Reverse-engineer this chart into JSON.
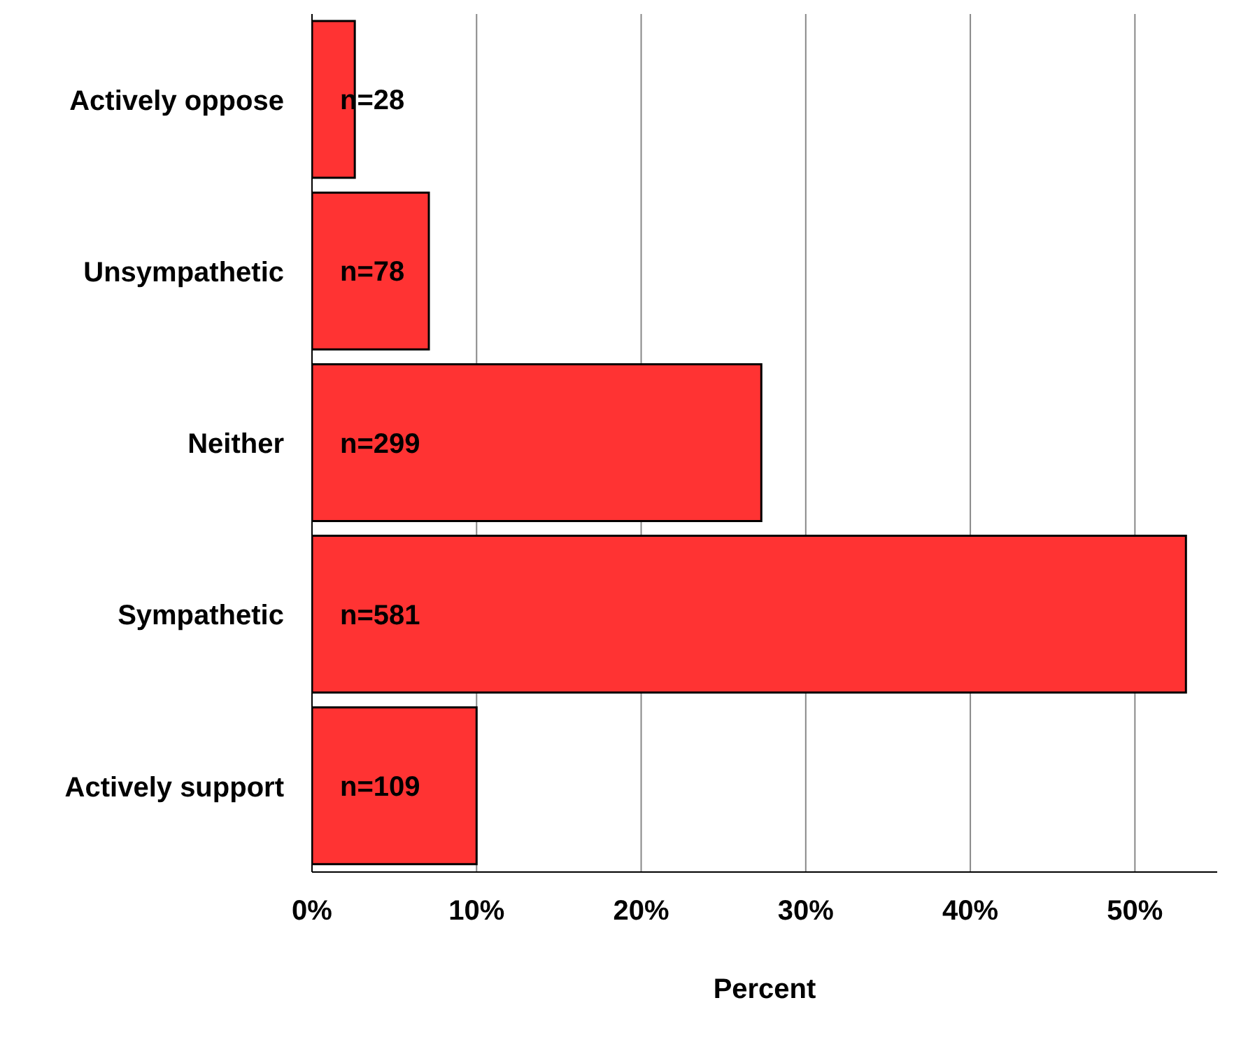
{
  "chart_data": {
    "type": "bar",
    "orientation": "horizontal",
    "xlabel": "Percent",
    "categories": [
      "Actively oppose",
      "Unsympathetic",
      "Neither",
      "Sympathetic",
      "Actively support"
    ],
    "values": [
      2.6,
      7.1,
      27.3,
      53.1,
      10.0
    ],
    "annotations": [
      "n=28",
      "n=78",
      "n=299",
      "n=581",
      "n=109"
    ],
    "color": "#ff3333",
    "xlim": [
      0,
      55
    ],
    "xticks": [
      {
        "value": 0,
        "label": "0%"
      },
      {
        "value": 10,
        "label": "10%"
      },
      {
        "value": 20,
        "label": "20%"
      },
      {
        "value": 30,
        "label": "30%"
      },
      {
        "value": 40,
        "label": "40%"
      },
      {
        "value": 50,
        "label": "50%"
      }
    ],
    "grid": "x"
  }
}
